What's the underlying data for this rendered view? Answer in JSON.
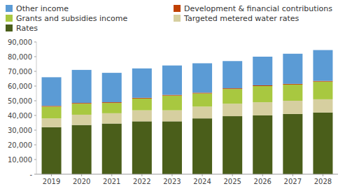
{
  "chart_data": {
    "type": "bar",
    "stacked": true,
    "grid": false,
    "legend": "top-left",
    "categories": [
      "2019",
      "2020",
      "2021",
      "2022",
      "2023",
      "2024",
      "2025",
      "2026",
      "2027",
      "2028"
    ],
    "series": [
      {
        "name": "Rates",
        "color": "#4a5e1a",
        "values": [
          32000,
          33500,
          34500,
          36000,
          36000,
          38000,
          39500,
          40000,
          41000,
          42000
        ]
      },
      {
        "name": "Targeted metered water rates",
        "color": "#d6cfa0",
        "values": [
          6000,
          7000,
          7000,
          7500,
          7500,
          8000,
          8500,
          9000,
          9000,
          9000
        ]
      },
      {
        "name": "Grants and subsidies income",
        "color": "#a8c840",
        "values": [
          8000,
          7500,
          7000,
          8000,
          10000,
          9000,
          10000,
          11000,
          11000,
          12000
        ]
      },
      {
        "name": "Development & financial contributions",
        "color": "#c04000",
        "values": [
          500,
          500,
          500,
          500,
          500,
          500,
          500,
          500,
          500,
          500
        ]
      },
      {
        "name": "Other income",
        "color": "#5b9bd5",
        "values": [
          19500,
          22500,
          20000,
          20000,
          20000,
          20000,
          18500,
          19500,
          20500,
          21000
        ]
      }
    ],
    "ylim": [
      0,
      90000
    ],
    "yticks": [
      {
        "value": 0,
        "label": "-"
      },
      {
        "value": 10000,
        "label": "10,000"
      },
      {
        "value": 20000,
        "label": "20,000"
      },
      {
        "value": 30000,
        "label": "30,000"
      },
      {
        "value": 40000,
        "label": "40,000"
      },
      {
        "value": 50000,
        "label": "50,000"
      },
      {
        "value": 60000,
        "label": "60,000"
      },
      {
        "value": 70000,
        "label": "70,000"
      },
      {
        "value": 80000,
        "label": "80,000"
      },
      {
        "value": 90000,
        "label": "90,000"
      }
    ]
  }
}
